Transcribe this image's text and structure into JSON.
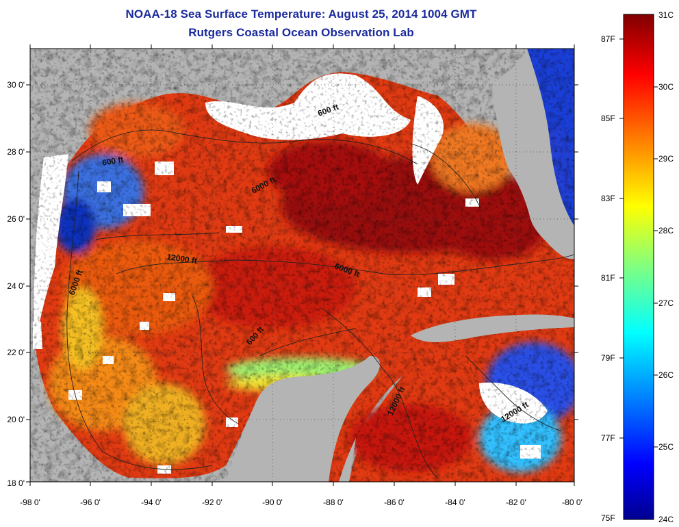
{
  "title": "NOAA-18 Sea Surface Temperature:  August 25, 2014 1004 GMT",
  "subtitle": "Rutgers Coastal Ocean Observation Lab",
  "map": {
    "lon_ticks": [
      "-98 0'",
      "-96 0'",
      "-94 0'",
      "-92 0'",
      "-90 0'",
      "-88 0'",
      "-86 0'",
      "-84 0'",
      "-82 0'",
      "-80 0'"
    ],
    "lat_ticks": [
      "30 0'",
      "28 0'",
      "26 0'",
      "24 0'",
      "22 0'",
      "20 0'",
      "18 0'"
    ],
    "lon_range": [
      -98,
      -80
    ],
    "lat_range": [
      18,
      31
    ],
    "contour_labels": [
      "600 ft",
      "600 ft",
      "6000 ft",
      "12000 ft",
      "6000 ft",
      "6000 ft",
      "600 ft",
      "12000 ft",
      "12000 ft"
    ]
  },
  "colorbar": {
    "celsius_labels": [
      "31C",
      "30C",
      "29C",
      "28C",
      "27C",
      "26C",
      "25C",
      "24C"
    ],
    "fahrenheit_labels": [
      "87F",
      "85F",
      "83F",
      "81F",
      "79F",
      "77F",
      "75F"
    ],
    "range_c": [
      24,
      31
    ],
    "colors": [
      "#00008f",
      "#0000ff",
      "#0080ff",
      "#00ffff",
      "#80ff80",
      "#ffff00",
      "#ff8000",
      "#ff0000",
      "#800000"
    ]
  },
  "colors": {
    "land": "#b4b4b4",
    "cloud": "#ffffff",
    "title": "#1a2a9c"
  }
}
